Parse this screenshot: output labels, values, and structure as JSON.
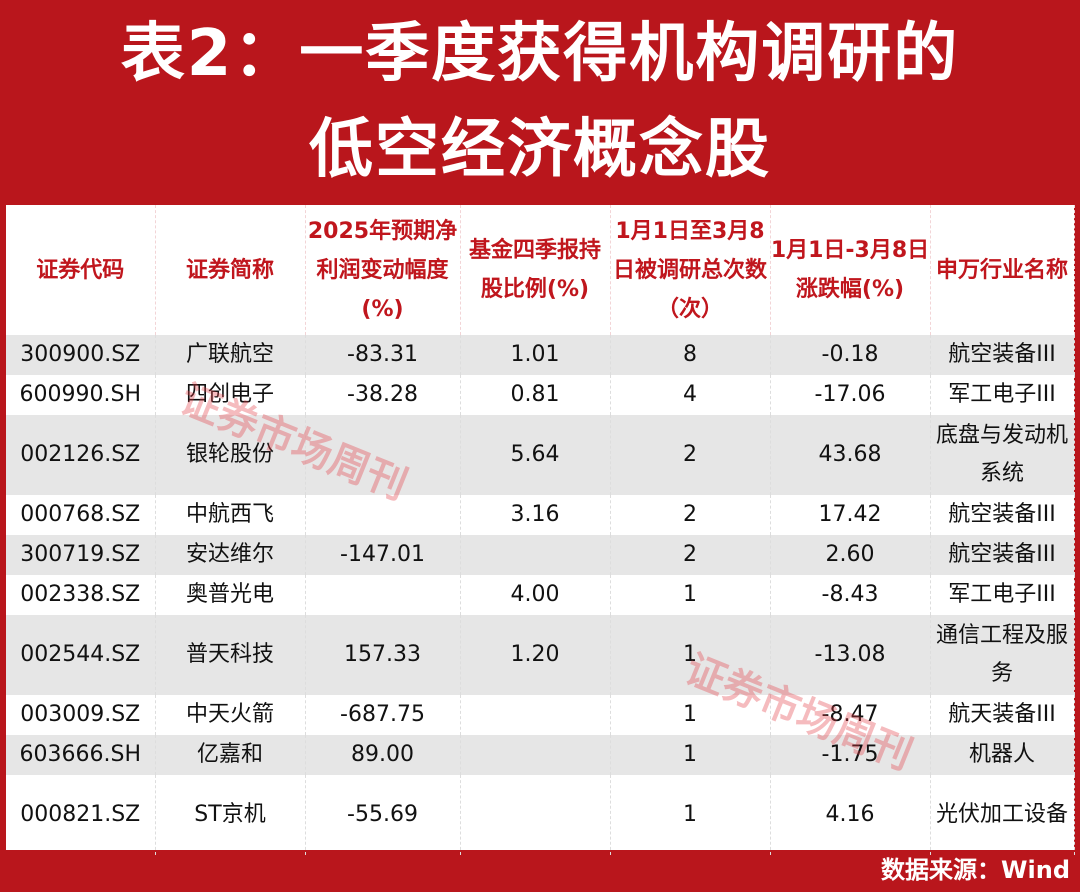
{
  "title": {
    "line1": "表2：一季度获得机构调研的",
    "line2": "低空经济概念股"
  },
  "columns": [
    "证券代码",
    "证券简称",
    "2025年预期净利润变动幅度(%)",
    "基金四季报持股比例(%)",
    "1月1日至3月8日被调研总次数（次）",
    "1月1日-3月8日涨跌幅(%)",
    "申万行业名称"
  ],
  "rows": [
    [
      "300900.SZ",
      "广联航空",
      "-83.31",
      "1.01",
      "8",
      "-0.18",
      "航空装备III"
    ],
    [
      "600990.SH",
      "四创电子",
      "-38.28",
      "0.81",
      "4",
      "-17.06",
      "军工电子III"
    ],
    [
      "002126.SZ",
      "银轮股份",
      "",
      "5.64",
      "2",
      "43.68",
      "底盘与发动机系统"
    ],
    [
      "000768.SZ",
      "中航西飞",
      "",
      "3.16",
      "2",
      "17.42",
      "航空装备III"
    ],
    [
      "300719.SZ",
      "安达维尔",
      "-147.01",
      "",
      "2",
      "2.60",
      "航空装备III"
    ],
    [
      "002338.SZ",
      "奥普光电",
      "",
      "4.00",
      "1",
      "-8.43",
      "军工电子III"
    ],
    [
      "002544.SZ",
      "普天科技",
      "157.33",
      "1.20",
      "1",
      "-13.08",
      "通信工程及服务"
    ],
    [
      "003009.SZ",
      "中天火箭",
      "-687.75",
      "",
      "1",
      "-8.47",
      "航天装备III"
    ],
    [
      "603666.SH",
      "亿嘉和",
      "89.00",
      "",
      "1",
      "-1.75",
      "机器人"
    ],
    [
      "000821.SZ",
      "ST京机",
      "-55.69",
      "",
      "1",
      "4.16",
      "光伏加工设备"
    ]
  ],
  "footer": "数据来源：Wind",
  "watermark": "证券市场周刊",
  "colors": {
    "brand_red": "#b9161c",
    "header_text": "#c0161d",
    "row_alt": "#e6e6e6"
  }
}
